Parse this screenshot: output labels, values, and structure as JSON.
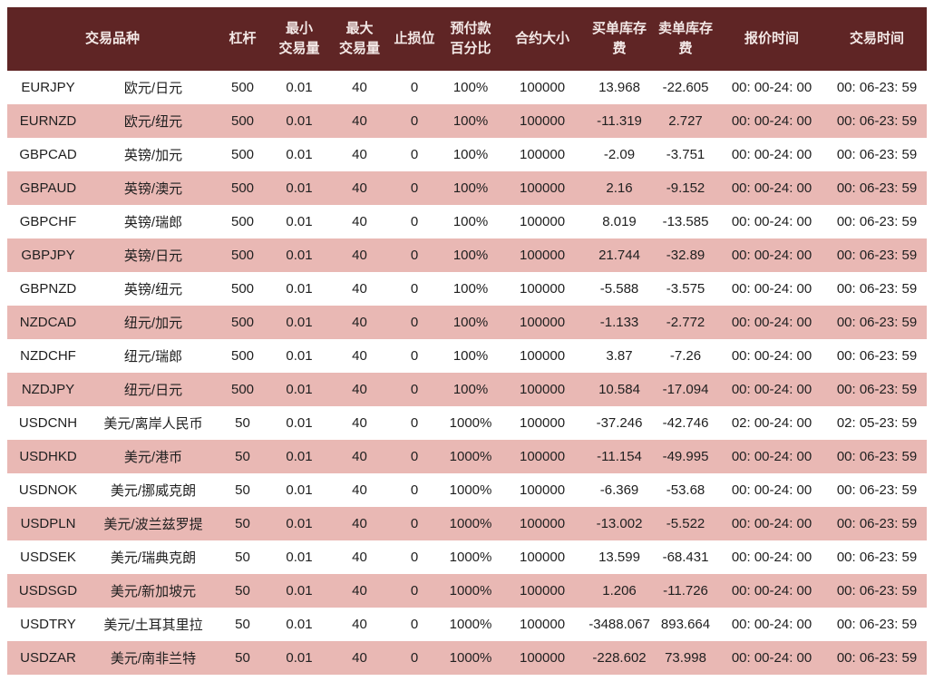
{
  "colors": {
    "header_bg": "#5f2525",
    "header_text": "#f3e8e6",
    "row_bg": "#ffffff",
    "row_alt_bg": "#e9b8b4",
    "cell_text": "#1f1f1f"
  },
  "table": {
    "columns": [
      {
        "key": "instrument",
        "label": "交易品种",
        "colspan": 2
      },
      {
        "key": "leverage",
        "label": "杠杆"
      },
      {
        "key": "min_volume",
        "label": "最小\n交易量"
      },
      {
        "key": "max_volume",
        "label": "最大\n交易量"
      },
      {
        "key": "stop_level",
        "label": "止损位"
      },
      {
        "key": "margin_percent",
        "label": "预付款\n百分比"
      },
      {
        "key": "contract_size",
        "label": "合约大小"
      },
      {
        "key": "buy_swap",
        "label": "买单库存费"
      },
      {
        "key": "sell_swap",
        "label": "卖单库存费"
      },
      {
        "key": "quote_time",
        "label": "报价时间"
      },
      {
        "key": "trade_time",
        "label": "交易时间"
      }
    ],
    "cell_keys": [
      "symbol",
      "name",
      "leverage",
      "min_volume",
      "max_volume",
      "stop_level",
      "margin_percent",
      "contract_size",
      "buy_swap",
      "sell_swap",
      "quote_time",
      "trade_time"
    ],
    "rows": [
      {
        "symbol": "EURJPY",
        "name": "欧元/日元",
        "leverage": "500",
        "min_volume": "0.01",
        "max_volume": "40",
        "stop_level": "0",
        "margin_percent": "100%",
        "contract_size": "100000",
        "buy_swap": "13.968",
        "sell_swap": "-22.605",
        "quote_time": "00: 00-24: 00",
        "trade_time": "00: 06-23: 59"
      },
      {
        "symbol": "EURNZD",
        "name": "欧元/纽元",
        "leverage": "500",
        "min_volume": "0.01",
        "max_volume": "40",
        "stop_level": "0",
        "margin_percent": "100%",
        "contract_size": "100000",
        "buy_swap": "-11.319",
        "sell_swap": "2.727",
        "quote_time": "00: 00-24: 00",
        "trade_time": "00: 06-23: 59"
      },
      {
        "symbol": "GBPCAD",
        "name": "英镑/加元",
        "leverage": "500",
        "min_volume": "0.01",
        "max_volume": "40",
        "stop_level": "0",
        "margin_percent": "100%",
        "contract_size": "100000",
        "buy_swap": "-2.09",
        "sell_swap": "-3.751",
        "quote_time": "00: 00-24: 00",
        "trade_time": "00: 06-23: 59"
      },
      {
        "symbol": "GBPAUD",
        "name": "英镑/澳元",
        "leverage": "500",
        "min_volume": "0.01",
        "max_volume": "40",
        "stop_level": "0",
        "margin_percent": "100%",
        "contract_size": "100000",
        "buy_swap": "2.16",
        "sell_swap": "-9.152",
        "quote_time": "00: 00-24: 00",
        "trade_time": "00: 06-23: 59"
      },
      {
        "symbol": "GBPCHF",
        "name": "英镑/瑞郎",
        "leverage": "500",
        "min_volume": "0.01",
        "max_volume": "40",
        "stop_level": "0",
        "margin_percent": "100%",
        "contract_size": "100000",
        "buy_swap": "8.019",
        "sell_swap": "-13.585",
        "quote_time": "00: 00-24: 00",
        "trade_time": "00: 06-23: 59"
      },
      {
        "symbol": "GBPJPY",
        "name": "英镑/日元",
        "leverage": "500",
        "min_volume": "0.01",
        "max_volume": "40",
        "stop_level": "0",
        "margin_percent": "100%",
        "contract_size": "100000",
        "buy_swap": "21.744",
        "sell_swap": "-32.89",
        "quote_time": "00: 00-24: 00",
        "trade_time": "00: 06-23: 59"
      },
      {
        "symbol": "GBPNZD",
        "name": "英镑/纽元",
        "leverage": "500",
        "min_volume": "0.01",
        "max_volume": "40",
        "stop_level": "0",
        "margin_percent": "100%",
        "contract_size": "100000",
        "buy_swap": "-5.588",
        "sell_swap": "-3.575",
        "quote_time": "00: 00-24: 00",
        "trade_time": "00: 06-23: 59"
      },
      {
        "symbol": "NZDCAD",
        "name": "纽元/加元",
        "leverage": "500",
        "min_volume": "0.01",
        "max_volume": "40",
        "stop_level": "0",
        "margin_percent": "100%",
        "contract_size": "100000",
        "buy_swap": "-1.133",
        "sell_swap": "-2.772",
        "quote_time": "00: 00-24: 00",
        "trade_time": "00: 06-23: 59"
      },
      {
        "symbol": "NZDCHF",
        "name": "纽元/瑞郎",
        "leverage": "500",
        "min_volume": "0.01",
        "max_volume": "40",
        "stop_level": "0",
        "margin_percent": "100%",
        "contract_size": "100000",
        "buy_swap": "3.87",
        "sell_swap": "-7.26",
        "quote_time": "00: 00-24: 00",
        "trade_time": "00: 06-23: 59"
      },
      {
        "symbol": "NZDJPY",
        "name": "纽元/日元",
        "leverage": "500",
        "min_volume": "0.01",
        "max_volume": "40",
        "stop_level": "0",
        "margin_percent": "100%",
        "contract_size": "100000",
        "buy_swap": "10.584",
        "sell_swap": "-17.094",
        "quote_time": "00: 00-24: 00",
        "trade_time": "00: 06-23: 59"
      },
      {
        "symbol": "USDCNH",
        "name": "美元/离岸人民币",
        "leverage": "50",
        "min_volume": "0.01",
        "max_volume": "40",
        "stop_level": "0",
        "margin_percent": "1000%",
        "contract_size": "100000",
        "buy_swap": "-37.246",
        "sell_swap": "-42.746",
        "quote_time": "02: 00-24: 00",
        "trade_time": "02: 05-23: 59"
      },
      {
        "symbol": "USDHKD",
        "name": "美元/港币",
        "leverage": "50",
        "min_volume": "0.01",
        "max_volume": "40",
        "stop_level": "0",
        "margin_percent": "1000%",
        "contract_size": "100000",
        "buy_swap": "-11.154",
        "sell_swap": "-49.995",
        "quote_time": "00: 00-24: 00",
        "trade_time": "00: 06-23: 59"
      },
      {
        "symbol": "USDNOK",
        "name": "美元/挪威克朗",
        "leverage": "50",
        "min_volume": "0.01",
        "max_volume": "40",
        "stop_level": "0",
        "margin_percent": "1000%",
        "contract_size": "100000",
        "buy_swap": "-6.369",
        "sell_swap": "-53.68",
        "quote_time": "00: 00-24: 00",
        "trade_time": "00: 06-23: 59"
      },
      {
        "symbol": "USDPLN",
        "name": "美元/波兰兹罗提",
        "leverage": "50",
        "min_volume": "0.01",
        "max_volume": "40",
        "stop_level": "0",
        "margin_percent": "1000%",
        "contract_size": "100000",
        "buy_swap": "-13.002",
        "sell_swap": "-5.522",
        "quote_time": "00: 00-24: 00",
        "trade_time": "00: 06-23: 59"
      },
      {
        "symbol": "USDSEK",
        "name": "美元/瑞典克朗",
        "leverage": "50",
        "min_volume": "0.01",
        "max_volume": "40",
        "stop_level": "0",
        "margin_percent": "1000%",
        "contract_size": "100000",
        "buy_swap": "13.599",
        "sell_swap": "-68.431",
        "quote_time": "00: 00-24: 00",
        "trade_time": "00: 06-23: 59"
      },
      {
        "symbol": "USDSGD",
        "name": "美元/新加坡元",
        "leverage": "50",
        "min_volume": "0.01",
        "max_volume": "40",
        "stop_level": "0",
        "margin_percent": "1000%",
        "contract_size": "100000",
        "buy_swap": "1.206",
        "sell_swap": "-11.726",
        "quote_time": "00: 00-24: 00",
        "trade_time": "00: 06-23: 59"
      },
      {
        "symbol": "USDTRY",
        "name": "美元/土耳其里拉",
        "leverage": "50",
        "min_volume": "0.01",
        "max_volume": "40",
        "stop_level": "0",
        "margin_percent": "1000%",
        "contract_size": "100000",
        "buy_swap": "-3488.067",
        "sell_swap": "893.664",
        "quote_time": "00: 00-24: 00",
        "trade_time": "00: 06-23: 59"
      },
      {
        "symbol": "USDZAR",
        "name": "美元/南非兰特",
        "leverage": "50",
        "min_volume": "0.01",
        "max_volume": "40",
        "stop_level": "0",
        "margin_percent": "1000%",
        "contract_size": "100000",
        "buy_swap": "-228.602",
        "sell_swap": "73.998",
        "quote_time": "00: 00-24: 00",
        "trade_time": "00: 06-23: 59"
      }
    ]
  }
}
